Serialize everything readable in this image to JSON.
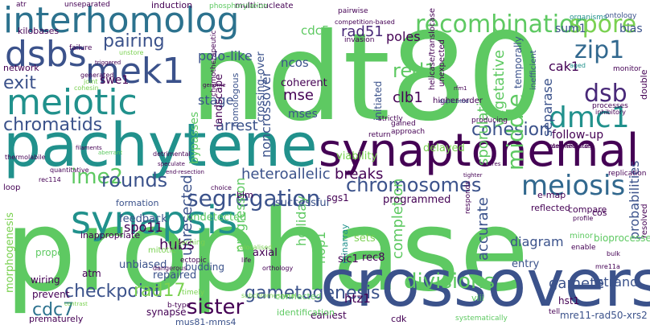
{
  "words": [
    {
      "text": "ndt80",
      "color": "#5ec962"
    },
    {
      "text": "prophase",
      "color": "#5ec962"
    },
    {
      "text": "pachytene",
      "color": "#21918c"
    },
    {
      "text": "crossovers",
      "color": "#3b528b"
    },
    {
      "text": "synaptonemal",
      "color": "#440154"
    },
    {
      "text": "interhomolog",
      "color": "#2c728e"
    },
    {
      "text": "synapsis",
      "color": "#21918c"
    },
    {
      "text": "meiotic",
      "color": "#21918c"
    },
    {
      "text": "mek1",
      "color": "#3b528b"
    },
    {
      "text": "dsbs",
      "color": "#3b528b"
    },
    {
      "text": "recombination",
      "color": "#5ec962"
    },
    {
      "text": "spore",
      "color": "#7ad151"
    },
    {
      "text": "zip1",
      "color": "#31688e"
    },
    {
      "text": "dmc1",
      "color": "#21918c"
    },
    {
      "text": "dsb",
      "color": "#482878"
    },
    {
      "text": "meiosis",
      "color": "#31688e"
    },
    {
      "text": "segregation",
      "color": "#3b528b"
    },
    {
      "text": "chromosomes",
      "color": "#3b528b"
    },
    {
      "text": "middle",
      "color": "#5ec962"
    },
    {
      "text": "pairing",
      "color": "#3b528b"
    },
    {
      "text": "exit",
      "color": "#3b528b"
    },
    {
      "text": "chromatids",
      "color": "#3b528b"
    },
    {
      "text": "ime2",
      "color": "#5ec962"
    },
    {
      "text": "rounds",
      "color": "#3b528b"
    },
    {
      "text": "divisions",
      "color": "#5ec962"
    },
    {
      "text": "sister",
      "color": "#440154"
    },
    {
      "text": "gametogenesis",
      "color": "#3b528b"
    },
    {
      "text": "checkpoint",
      "color": "#3b528b"
    },
    {
      "text": "cdc7",
      "color": "#2c728e"
    },
    {
      "text": "rad17",
      "color": "#7ad151"
    },
    {
      "text": "breaks",
      "color": "#440154"
    },
    {
      "text": "cohesion",
      "color": "#3b528b"
    },
    {
      "text": "heteroallelic",
      "color": "#3b528b"
    },
    {
      "text": "arrest",
      "color": "#3b528b"
    },
    {
      "text": "mse",
      "color": "#440154"
    },
    {
      "text": "mses",
      "color": "#3b528b"
    },
    {
      "text": "ncos",
      "color": "#3b528b"
    },
    {
      "text": "red1",
      "color": "#5ec962"
    },
    {
      "text": "clb1",
      "color": "#440154"
    },
    {
      "text": "cdc5",
      "color": "#5ec962"
    },
    {
      "text": "rad51",
      "color": "#482878"
    },
    {
      "text": "swe1",
      "color": "#440154"
    },
    {
      "text": "polo-like",
      "color": "#3b528b"
    },
    {
      "text": "stage",
      "color": "#3b528b"
    },
    {
      "text": "poles",
      "color": "#440154"
    },
    {
      "text": "coherent",
      "color": "#440154"
    },
    {
      "text": "cak1",
      "color": "#440154"
    },
    {
      "text": "sum1",
      "color": "#3b528b"
    },
    {
      "text": "bias",
      "color": "#3b528b"
    },
    {
      "text": "separase",
      "color": "#3b528b"
    },
    {
      "text": "sporulation",
      "color": "#5ec962"
    },
    {
      "text": "vegetative",
      "color": "#5ec962"
    },
    {
      "text": "noncrossover",
      "color": "#3b528b"
    },
    {
      "text": "crossing-over",
      "color": "#3b528b"
    },
    {
      "text": "landscape",
      "color": "#440154"
    },
    {
      "text": "homologous",
      "color": "#3b528b"
    },
    {
      "text": "bypasses",
      "color": "#5ec962"
    },
    {
      "text": "delayed",
      "color": "#7ad151"
    },
    {
      "text": "viability",
      "color": "#7ad151"
    },
    {
      "text": "follow-up",
      "color": "#440154"
    },
    {
      "text": "temporally",
      "color": "#3b528b"
    },
    {
      "text": "programmed",
      "color": "#440154"
    },
    {
      "text": "successful",
      "color": "#3b528b"
    },
    {
      "text": "unresected",
      "color": "#3b528b"
    },
    {
      "text": "undetected",
      "color": "#5ec962"
    },
    {
      "text": "formation",
      "color": "#3b528b"
    },
    {
      "text": "feedback",
      "color": "#3b528b"
    },
    {
      "text": "spo11",
      "color": "#440154"
    },
    {
      "text": "hubs",
      "color": "#440154"
    },
    {
      "text": "unbiased",
      "color": "#3b528b"
    },
    {
      "text": "repaired",
      "color": "#3b528b"
    },
    {
      "text": "budding",
      "color": "#3b528b"
    },
    {
      "text": "axial",
      "color": "#440154"
    },
    {
      "text": "inappropriate",
      "color": "#440154"
    },
    {
      "text": "progression",
      "color": "#5ec962"
    },
    {
      "text": "holliday",
      "color": "#5ec962"
    },
    {
      "text": "hop1",
      "color": "#5ec962"
    },
    {
      "text": "minarray",
      "color": "#21918c"
    },
    {
      "text": "completion",
      "color": "#5ec962"
    },
    {
      "text": "sets",
      "color": "#7ad151"
    },
    {
      "text": "rec8",
      "color": "#440154"
    },
    {
      "text": "sic1",
      "color": "#440154"
    },
    {
      "text": "accurate",
      "color": "#3b528b"
    },
    {
      "text": "diagram",
      "color": "#3b528b"
    },
    {
      "text": "entry",
      "color": "#3b528b"
    },
    {
      "text": "gamete",
      "color": "#3b528b"
    },
    {
      "text": "strand",
      "color": "#3b528b"
    },
    {
      "text": "hst1",
      "color": "#440154"
    },
    {
      "text": "htz1",
      "color": "#440154"
    },
    {
      "text": "atm",
      "color": "#440154"
    },
    {
      "text": "wiring",
      "color": "#440154"
    },
    {
      "text": "prevent",
      "color": "#440154"
    },
    {
      "text": "synapse",
      "color": "#440154"
    },
    {
      "text": "prematurely",
      "color": "#440154"
    },
    {
      "text": "earliest",
      "color": "#440154"
    },
    {
      "text": "morphogenesis",
      "color": "#7ad151"
    },
    {
      "text": "proper",
      "color": "#5ec962"
    },
    {
      "text": "mitotic",
      "color": "#7ad151"
    },
    {
      "text": "blm",
      "color": "#440154"
    },
    {
      "text": "sgs1",
      "color": "#440154"
    },
    {
      "text": "cos",
      "color": "#440154"
    },
    {
      "text": "bioprocesses",
      "color": "#5ec962"
    },
    {
      "text": "probabilities",
      "color": "#3b528b"
    },
    {
      "text": "mre11-rad50-xrs2",
      "color": "#3b528b"
    },
    {
      "text": "mus81-mms4",
      "color": "#3b528b"
    },
    {
      "text": "identification",
      "color": "#5ec962"
    },
    {
      "text": "cdk",
      "color": "#440154"
    },
    {
      "text": "viii",
      "color": "#5ec962"
    },
    {
      "text": "connected",
      "color": "#5ec962"
    },
    {
      "text": "kilobases",
      "color": "#440154"
    },
    {
      "text": "multi-nucleate",
      "color": "#440154"
    },
    {
      "text": "induction",
      "color": "#440154"
    },
    {
      "text": "phosphorylation",
      "color": "#5ec962"
    },
    {
      "text": "unseparated",
      "color": "#440154"
    },
    {
      "text": "atr",
      "color": "#440154"
    },
    {
      "text": "network",
      "color": "#440154"
    },
    {
      "text": "organisms",
      "color": "#21918c"
    },
    {
      "text": "ontology",
      "color": "#3b528b"
    },
    {
      "text": "aged",
      "color": "#21918c"
    },
    {
      "text": "monitor",
      "color": "#440154"
    },
    {
      "text": "double",
      "color": "#440154"
    },
    {
      "text": "processes",
      "color": "#440154"
    },
    {
      "text": "inhibitory",
      "color": "#440154"
    },
    {
      "text": "replication",
      "color": "#440154"
    },
    {
      "text": "resolved",
      "color": "#440154"
    },
    {
      "text": "competition-based",
      "color": "#440154"
    },
    {
      "text": "pairwise",
      "color": "#440154"
    },
    {
      "text": "invasion",
      "color": "#440154"
    },
    {
      "text": "failure",
      "color": "#440154"
    },
    {
      "text": "triggered",
      "color": "#440154"
    },
    {
      "text": "generated",
      "color": "#440154"
    },
    {
      "text": "joint",
      "color": "#7ad151"
    },
    {
      "text": "cohesin",
      "color": "#7ad151"
    },
    {
      "text": "unstore",
      "color": "#7ad151"
    },
    {
      "text": "helicase/translocase",
      "color": "#440154"
    },
    {
      "text": "unexpected",
      "color": "#440154"
    },
    {
      "text": "inefficient",
      "color": "#3b528b"
    },
    {
      "text": "initiated",
      "color": "#3b528b"
    },
    {
      "text": "strictly",
      "color": "#440154"
    },
    {
      "text": "higher-order",
      "color": "#440154"
    },
    {
      "text": "duplicated",
      "color": "#3b528b"
    },
    {
      "text": "rfm1",
      "color": "#440154"
    },
    {
      "text": "producing",
      "color": "#440154"
    },
    {
      "text": "gained",
      "color": "#440154"
    },
    {
      "text": "approach",
      "color": "#440154"
    },
    {
      "text": "return",
      "color": "#440154"
    },
    {
      "text": "intermediates",
      "color": "#440154"
    },
    {
      "text": "filaments",
      "color": "#440154"
    },
    {
      "text": "aberrant",
      "color": "#5ec962"
    },
    {
      "text": "thermolabile",
      "color": "#440154"
    },
    {
      "text": "detrimental",
      "color": "#440154"
    },
    {
      "text": "quantitative",
      "color": "#440154"
    },
    {
      "text": "rec114",
      "color": "#440154"
    },
    {
      "text": "loop",
      "color": "#440154"
    },
    {
      "text": "end-resection",
      "color": "#440154"
    },
    {
      "text": "choice",
      "color": "#440154"
    },
    {
      "text": "scores",
      "color": "#440154"
    },
    {
      "text": "tighter",
      "color": "#440154"
    },
    {
      "text": "e-map",
      "color": "#440154"
    },
    {
      "text": "reflected",
      "color": "#440154"
    },
    {
      "text": "compare",
      "color": "#440154"
    },
    {
      "text": "profile",
      "color": "#440154"
    },
    {
      "text": "minor",
      "color": "#5ec962"
    },
    {
      "text": "responds",
      "color": "#440154"
    },
    {
      "text": "enable",
      "color": "#440154"
    },
    {
      "text": "bulk",
      "color": "#440154"
    },
    {
      "text": "mre11a",
      "color": "#440154"
    },
    {
      "text": "tell",
      "color": "#440154"
    },
    {
      "text": "complementary",
      "color": "#440154"
    },
    {
      "text": "timely",
      "color": "#7ad151"
    },
    {
      "text": "reaching",
      "color": "#7ad151"
    },
    {
      "text": "ectopic",
      "color": "#440154"
    },
    {
      "text": "life",
      "color": "#440154"
    },
    {
      "text": "colocalised",
      "color": "#7ad151"
    },
    {
      "text": "orthology",
      "color": "#440154"
    },
    {
      "text": "dangerous",
      "color": "#440154"
    },
    {
      "text": "contrast",
      "color": "#7ad151"
    },
    {
      "text": "b-type",
      "color": "#440154"
    },
    {
      "text": "subchromosomal",
      "color": "#7ad151"
    },
    {
      "text": "systematically",
      "color": "#5ec962"
    },
    {
      "text": "genome",
      "color": "#440154"
    },
    {
      "text": "speculate",
      "color": "#440154"
    },
    {
      "text": "chemotherapeutic",
      "color": "#440154"
    }
  ]
}
